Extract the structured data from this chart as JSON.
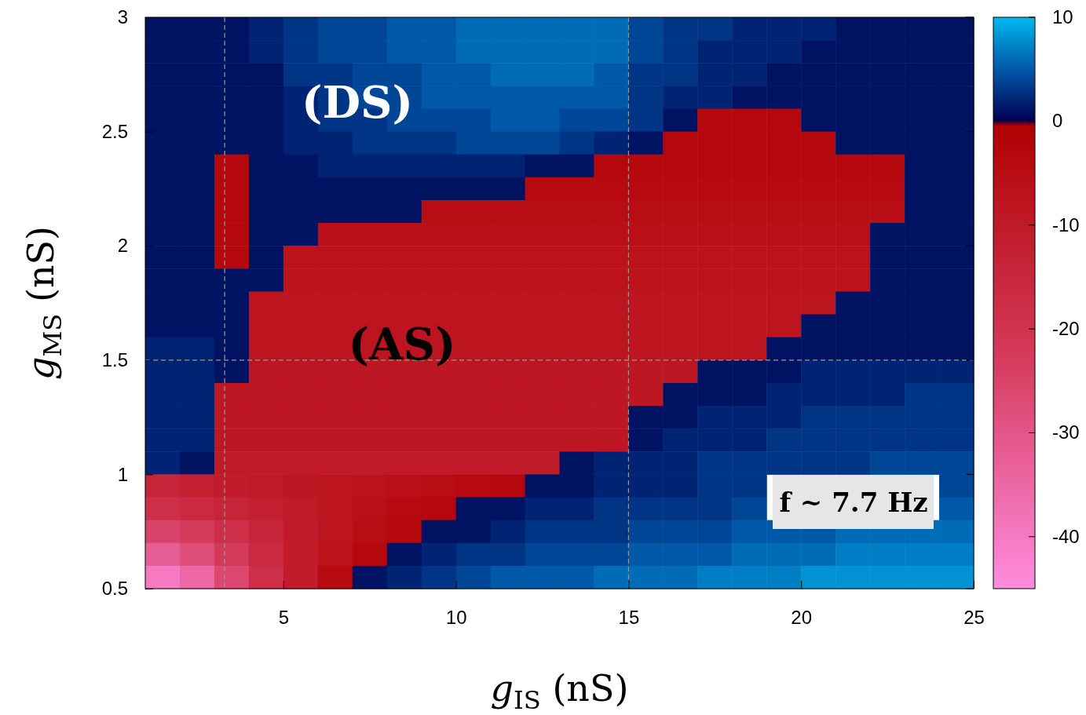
{
  "chart_data": {
    "type": "heatmap",
    "xlabel": "g$_{IS}$ (nS)",
    "ylabel": "g$_{MS}$ (nS)",
    "annotations": [
      "(DS)",
      "(AS)",
      "f ~ 7.7 Hz"
    ],
    "x": [
      1.5,
      2.5,
      3.5,
      4.5,
      5.5,
      6.5,
      7.5,
      8.5,
      9.5,
      10.5,
      11.5,
      12.5,
      13.5,
      14.5,
      15.5,
      16.5,
      17.5,
      18.5,
      19.5,
      20.5,
      21.5,
      22.5,
      23.5,
      24.5
    ],
    "y": [
      2.95,
      2.85,
      2.75,
      2.65,
      2.55,
      2.45,
      2.35,
      2.25,
      2.15,
      2.05,
      1.95,
      1.85,
      1.75,
      1.65,
      1.55,
      1.45,
      1.35,
      1.25,
      1.15,
      1.05,
      0.95,
      0.85,
      0.75,
      0.65,
      0.55
    ],
    "xlim": [
      1,
      25
    ],
    "xticks": [
      5,
      10,
      15,
      20,
      25
    ],
    "ylim": [
      0.5,
      3
    ],
    "yticks": [
      0.5,
      1,
      1.5,
      2,
      2.5,
      3
    ],
    "clim": [
      -45,
      10
    ],
    "cticks": [
      10,
      0,
      -10,
      -20,
      -30,
      -40
    ],
    "grid": false,
    "ref_lines": [
      {
        "axis": "x",
        "value": 3.3,
        "color": "#999999",
        "line_style": "dashed"
      },
      {
        "axis": "x",
        "value": 15,
        "color": "#999999",
        "line_style": "dashed"
      },
      {
        "axis": "y",
        "value": 1.5,
        "color": "#999999",
        "line_style": "dashed"
      }
    ],
    "cells": [
      [
        1,
        1,
        1,
        2,
        3,
        4,
        4,
        5,
        5,
        6,
        6,
        6,
        6,
        6,
        4,
        3,
        3,
        2,
        2,
        2,
        1,
        1,
        1,
        1
      ],
      [
        1,
        1,
        1,
        2,
        3,
        4,
        4,
        5,
        5,
        6,
        6,
        6,
        6,
        6,
        4,
        3,
        2,
        2,
        2,
        1,
        1,
        1,
        1,
        1
      ],
      [
        1,
        1,
        1,
        1,
        3,
        3,
        4,
        4,
        5,
        5,
        6,
        6,
        6,
        5,
        3,
        3,
        2,
        2,
        1,
        1,
        1,
        1,
        1,
        1
      ],
      [
        1,
        1,
        1,
        1,
        2,
        3,
        4,
        4,
        5,
        5,
        5,
        5,
        5,
        5,
        3,
        2,
        2,
        1,
        1,
        1,
        1,
        1,
        1,
        1
      ],
      [
        1,
        1,
        1,
        1,
        2,
        3,
        3,
        4,
        4,
        4,
        5,
        5,
        4,
        4,
        3,
        1,
        -3,
        -3,
        -3,
        1,
        1,
        1,
        1,
        1
      ],
      [
        1,
        1,
        1,
        1,
        2,
        2,
        3,
        3,
        3,
        4,
        4,
        4,
        3,
        2,
        1,
        -3,
        -3,
        -3,
        -3,
        -3,
        1,
        1,
        1,
        1
      ],
      [
        1,
        1,
        -3,
        1,
        1,
        2,
        2,
        2,
        2,
        2,
        2,
        1,
        1,
        -3,
        -3,
        -3,
        -3,
        -3,
        -3,
        -3,
        -3,
        -3,
        1,
        1
      ],
      [
        1,
        1,
        -3,
        1,
        1,
        1,
        1,
        1,
        1,
        1,
        1,
        -4,
        -4,
        -4,
        -4,
        -4,
        -4,
        -4,
        -4,
        -4,
        -4,
        -4,
        1,
        1
      ],
      [
        1,
        1,
        -3,
        1,
        1,
        1,
        1,
        1,
        -5,
        -5,
        -5,
        -5,
        -5,
        -5,
        -5,
        -5,
        -5,
        -5,
        -5,
        -5,
        -5,
        -5,
        1,
        1
      ],
      [
        1,
        1,
        -3,
        1,
        1,
        -6,
        -6,
        -6,
        -6,
        -6,
        -6,
        -6,
        -6,
        -6,
        -6,
        -6,
        -6,
        -6,
        -6,
        -6,
        -6,
        1,
        1,
        1
      ],
      [
        1,
        1,
        -3,
        1,
        -7,
        -7,
        -7,
        -7,
        -7,
        -7,
        -7,
        -7,
        -7,
        -7,
        -7,
        -7,
        -7,
        -7,
        -7,
        -7,
        -7,
        1,
        1,
        1
      ],
      [
        1,
        1,
        1,
        1,
        -7,
        -7,
        -7,
        -7,
        -7,
        -7,
        -7,
        -7,
        -7,
        -7,
        -7,
        -7,
        -7,
        -7,
        -7,
        -7,
        -7,
        1,
        1,
        1
      ],
      [
        1,
        1,
        1,
        -8,
        -8,
        -8,
        -8,
        -8,
        -8,
        -8,
        -8,
        -8,
        -8,
        -8,
        -8,
        -8,
        -8,
        -8,
        -8,
        -8,
        1,
        1,
        1,
        1
      ],
      [
        1,
        1,
        1,
        -8,
        -8,
        -8,
        -8,
        -8,
        -8,
        -8,
        -8,
        -8,
        -8,
        -8,
        -8,
        -8,
        -8,
        -8,
        -8,
        1,
        1,
        1,
        1,
        1
      ],
      [
        2,
        2,
        1,
        -8,
        -8,
        -8,
        -8,
        -8,
        -8,
        -8,
        -8,
        -8,
        -8,
        -8,
        -8,
        -8,
        -8,
        -8,
        1,
        1,
        1,
        1,
        1,
        1
      ],
      [
        2,
        2,
        1,
        -9,
        -9,
        -9,
        -9,
        -9,
        -9,
        -9,
        -9,
        -9,
        -9,
        -9,
        -9,
        -9,
        1,
        1,
        1,
        2,
        2,
        2,
        2,
        2
      ],
      [
        2,
        2,
        -9,
        -9,
        -9,
        -9,
        -9,
        -9,
        -9,
        -9,
        -9,
        -9,
        -9,
        -9,
        -9,
        1,
        1,
        1,
        2,
        2,
        2,
        2,
        3,
        3
      ],
      [
        2,
        2,
        -9,
        -9,
        -9,
        -9,
        -9,
        -9,
        -9,
        -9,
        -9,
        -9,
        -9,
        -9,
        1,
        1,
        2,
        2,
        2,
        3,
        3,
        3,
        3,
        3
      ],
      [
        2,
        2,
        -9,
        -9,
        -9,
        -9,
        -9,
        -9,
        -9,
        -9,
        -9,
        -9,
        -9,
        -9,
        1,
        2,
        2,
        2,
        3,
        3,
        3,
        3,
        3,
        3
      ],
      [
        2,
        1,
        -10,
        -10,
        -10,
        -10,
        -10,
        -10,
        -10,
        -10,
        -10,
        -10,
        1,
        2,
        2,
        2,
        3,
        3,
        3,
        3,
        3,
        4,
        4,
        4
      ],
      [
        -14,
        -12,
        -11,
        -10,
        -9,
        -8,
        -7,
        -6,
        -5,
        -4,
        -3,
        1,
        1,
        2,
        2,
        2,
        3,
        3,
        null,
        null,
        null,
        null,
        null,
        4
      ],
      [
        -18,
        -16,
        -14,
        -12,
        -10,
        -8,
        -6,
        -4,
        -3,
        1,
        1,
        2,
        2,
        3,
        3,
        3,
        3,
        4,
        null,
        null,
        null,
        null,
        null,
        5
      ],
      [
        -25,
        -22,
        -18,
        -14,
        -11,
        -8,
        -5,
        -3,
        1,
        1,
        2,
        3,
        3,
        3,
        4,
        4,
        4,
        5,
        5,
        5,
        6,
        6,
        6,
        6
      ],
      [
        -32,
        -28,
        -22,
        -16,
        -11,
        -7,
        -3,
        1,
        2,
        3,
        3,
        4,
        4,
        4,
        5,
        5,
        5,
        6,
        6,
        6,
        7,
        7,
        7,
        7
      ],
      [
        -40,
        -35,
        -26,
        -18,
        -11,
        -4,
        1,
        2,
        3,
        4,
        5,
        5,
        5,
        6,
        6,
        6,
        7,
        7,
        7,
        8,
        8,
        8,
        8,
        8
      ]
    ]
  }
}
